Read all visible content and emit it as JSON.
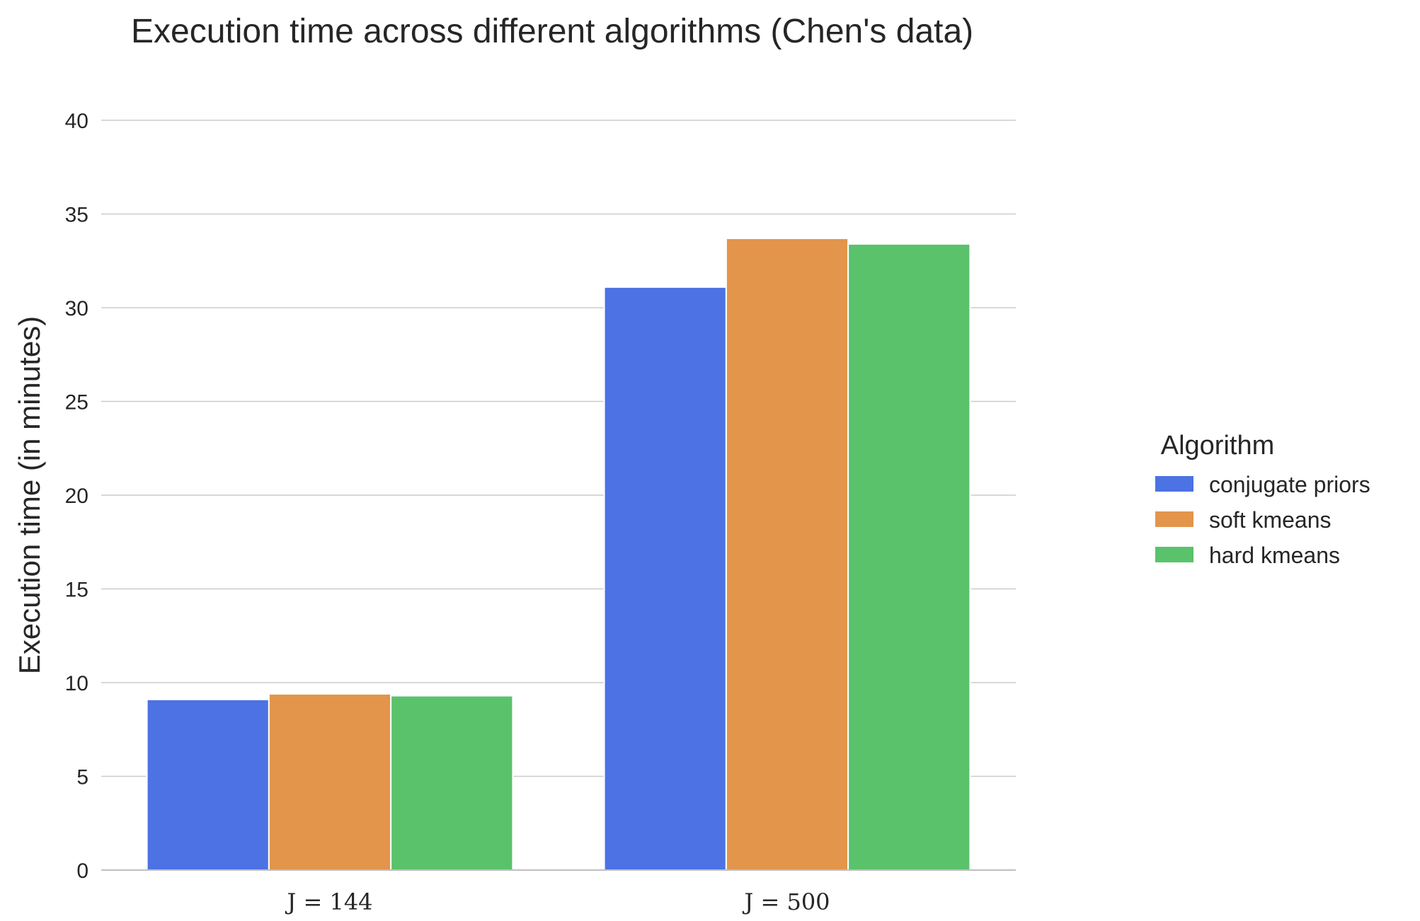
{
  "chart_data": {
    "type": "bar",
    "title": "Execution time across different algorithms (Chen's data)",
    "xlabel": "",
    "ylabel": "Execution time (in minutes)",
    "ylim": [
      0,
      40
    ],
    "yticks": [
      0,
      5,
      10,
      15,
      20,
      25,
      30,
      35,
      40
    ],
    "categories": [
      "J = 144",
      "J = 500"
    ],
    "grid": "horizontal",
    "legend": {
      "title": "Algorithm",
      "placement": "right"
    },
    "series": [
      {
        "name": "conjugate priors",
        "color": "#4c72e4",
        "values": [
          9.1,
          31.1
        ]
      },
      {
        "name": "soft kmeans",
        "color": "#e3954b",
        "values": [
          9.4,
          33.7
        ]
      },
      {
        "name": "hard kmeans",
        "color": "#59c26b",
        "values": [
          9.3,
          33.4
        ]
      }
    ]
  }
}
